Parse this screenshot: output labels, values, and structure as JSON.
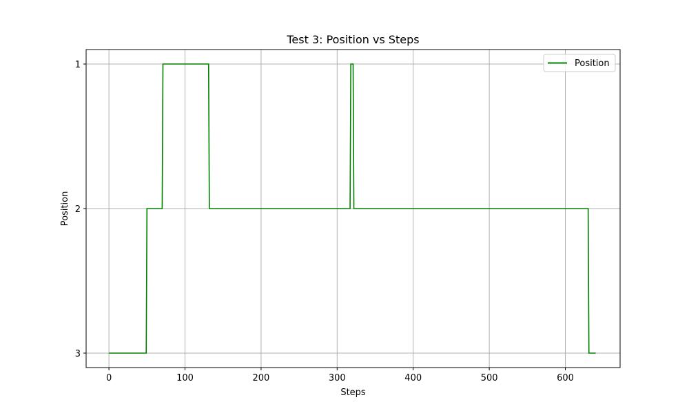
{
  "chart_data": {
    "type": "line",
    "title": "Test 3: Position vs Steps",
    "xlabel": "Steps",
    "ylabel": "Position",
    "xlim": [
      -30,
      672
    ],
    "ylim": [
      3.1,
      0.9
    ],
    "y_inverted": true,
    "x_ticks": [
      0,
      100,
      200,
      300,
      400,
      500,
      600
    ],
    "x_tick_labels": [
      "0",
      "100",
      "200",
      "300",
      "400",
      "500",
      "600"
    ],
    "y_ticks": [
      1,
      2,
      3
    ],
    "y_tick_labels": [
      "1",
      "2",
      "3"
    ],
    "grid": true,
    "legend_position": "top-right",
    "series": [
      {
        "name": "Position",
        "color": "#008000",
        "step": true,
        "x": [
          0,
          49,
          50,
          70,
          71,
          131,
          132,
          317,
          318,
          321,
          322,
          630,
          631,
          640
        ],
        "y": [
          3,
          3,
          2,
          2,
          1,
          1,
          2,
          2,
          1,
          1,
          2,
          2,
          3,
          3
        ]
      }
    ]
  }
}
